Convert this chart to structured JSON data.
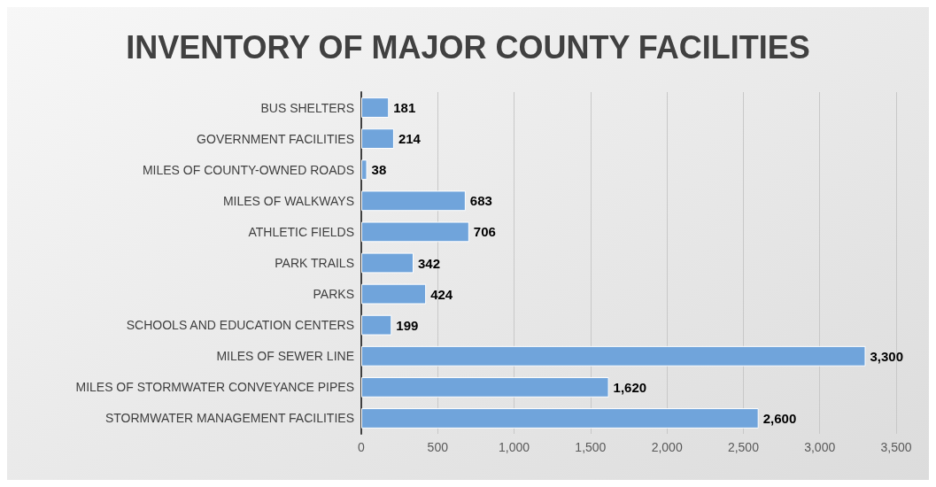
{
  "chart_data": {
    "type": "bar",
    "orientation": "horizontal",
    "title": "INVENTORY OF MAJOR COUNTY FACILITIES",
    "categories": [
      "BUS SHELTERS",
      "GOVERNMENT FACILITIES",
      "MILES OF COUNTY-OWNED ROADS",
      "MILES OF WALKWAYS",
      "ATHLETIC FIELDS",
      "PARK TRAILS",
      "PARKS",
      "SCHOOLS AND EDUCATION CENTERS",
      "MILES OF SEWER LINE",
      "MILES OF STORMWATER CONVEYANCE PIPES",
      "STORMWATER MANAGEMENT FACILITIES"
    ],
    "values": [
      181,
      214,
      38,
      683,
      706,
      342,
      424,
      199,
      3300,
      1620,
      2600
    ],
    "value_labels": [
      "181",
      "214",
      "38",
      "683",
      "706",
      "342",
      "424",
      "199",
      "3,300",
      "1,620",
      "2,600"
    ],
    "color": "#70a4db",
    "xlim": [
      0,
      3500
    ],
    "xticks": [
      0,
      500,
      {
        "value": 1000,
        "label": "1,000"
      },
      {
        "value": 1500,
        "label": "1,500"
      },
      {
        "value": 2000,
        "label": "2,000"
      },
      {
        "value": 2500,
        "label": "2,500"
      },
      {
        "value": 3000,
        "label": "3,000"
      },
      {
        "value": 3500,
        "label": "3,500"
      }
    ],
    "grid": "x"
  }
}
